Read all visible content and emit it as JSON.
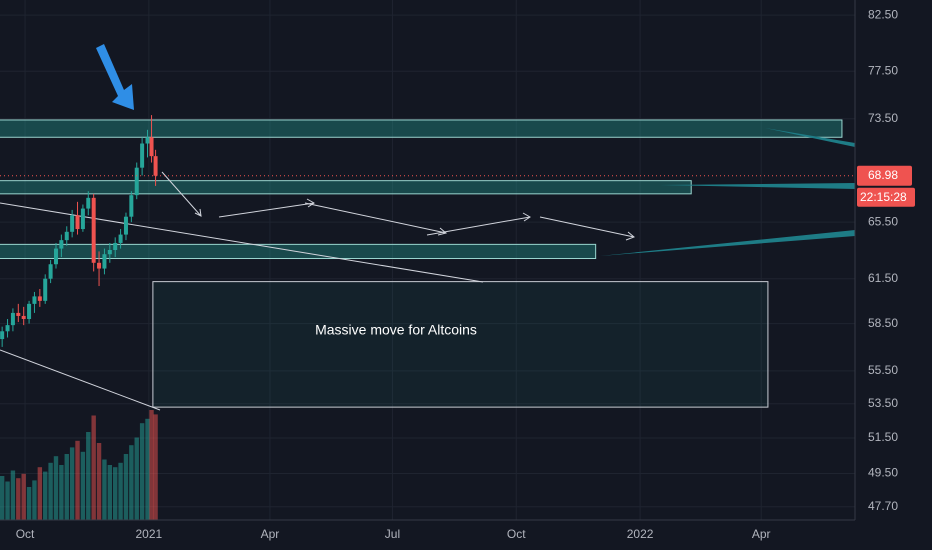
{
  "chart_data": {
    "type": "candlestick",
    "log_scale": true,
    "grid": true,
    "up_color": "#26a69a",
    "down_color": "#ef5350",
    "xlim": [
      -18.6,
      616.7
    ],
    "xticks": [
      {
        "value": 0,
        "label": "Oct"
      },
      {
        "value": 92,
        "label": "2021"
      },
      {
        "value": 182,
        "label": "Apr"
      },
      {
        "value": 273,
        "label": "Jul"
      },
      {
        "value": 365,
        "label": "Oct"
      },
      {
        "value": 457,
        "label": "2022"
      },
      {
        "value": 547,
        "label": "Apr"
      }
    ],
    "ylim": [
      47.0,
      83.9
    ],
    "yticks": [
      {
        "value": 82.5,
        "label": "82.50"
      },
      {
        "value": 77.5,
        "label": "77.50"
      },
      {
        "value": 73.5,
        "label": "73.50"
      },
      {
        "value": 65.5,
        "label": "65.50"
      },
      {
        "value": 61.5,
        "label": "61.50"
      },
      {
        "value": 58.5,
        "label": "58.50"
      },
      {
        "value": 55.5,
        "label": "55.50"
      },
      {
        "value": 53.5,
        "label": "53.50"
      },
      {
        "value": 51.5,
        "label": "51.50"
      },
      {
        "value": 49.5,
        "label": "49.50"
      },
      {
        "value": 47.7,
        "label": "47.70"
      }
    ],
    "candles": {
      "x": [
        -17,
        -13,
        -9,
        -5,
        -1,
        3,
        7,
        11,
        15,
        19,
        23,
        27,
        31,
        35,
        39,
        43,
        47,
        51,
        55,
        59,
        63,
        67,
        71,
        75,
        79,
        83,
        87,
        91,
        94,
        97
      ],
      "open": [
        57.5,
        58,
        58.4,
        59.2,
        59,
        58.8,
        59.8,
        60.3,
        60,
        61.5,
        62.5,
        63.6,
        64.2,
        64.8,
        66,
        65,
        66.5,
        67.3,
        62.6,
        62.2,
        63.2,
        63.5,
        64,
        64.6,
        65.9,
        67.5,
        69.6,
        71.5,
        72,
        70.5
      ],
      "high": [
        58.3,
        58.8,
        59.5,
        59.8,
        59.6,
        60,
        60.6,
        60.8,
        61.8,
        62.8,
        64,
        64.6,
        65.2,
        66.4,
        67,
        66.8,
        67.8,
        67.6,
        63.4,
        63.6,
        64,
        64.4,
        65,
        66.2,
        67.8,
        70,
        72,
        72.6,
        73.8,
        71
      ],
      "low": [
        57,
        57.6,
        58,
        58.6,
        58.4,
        58.5,
        59.2,
        59.6,
        59.8,
        61.2,
        62.2,
        63,
        63.8,
        64.4,
        64.6,
        64.8,
        66,
        62,
        61,
        61.8,
        62.6,
        63,
        63.6,
        64.2,
        65.5,
        67.2,
        69,
        70.4,
        70,
        68.2
      ],
      "close": [
        58,
        58.4,
        59.2,
        59,
        58.8,
        59.8,
        60.3,
        60,
        61.5,
        62.5,
        63.6,
        64.2,
        64.8,
        66,
        65,
        66.5,
        67.3,
        62.6,
        62.2,
        63.2,
        63.5,
        64,
        64.6,
        65.9,
        67.5,
        69.6,
        71.5,
        72,
        70.5,
        68.98
      ],
      "volume": [
        40,
        35,
        45,
        38,
        42,
        30,
        36,
        48,
        44,
        52,
        58,
        50,
        60,
        66,
        72,
        62,
        80,
        95,
        70,
        55,
        50,
        48,
        52,
        60,
        68,
        75,
        88,
        92,
        100,
        96
      ]
    },
    "zones": [
      {
        "x": [
          -19,
          607
        ],
        "y": [
          72.0,
          73.4
        ]
      },
      {
        "x": [
          -19,
          495
        ],
        "y": [
          67.6,
          68.6
        ]
      },
      {
        "x": [
          -19,
          424
        ],
        "y": [
          62.9,
          63.9
        ]
      }
    ],
    "annotation": {
      "x": [
        95,
        552
      ],
      "y": [
        53.3,
        61.3
      ],
      "label": "Massive move for Altcoins"
    },
    "last_price": {
      "value": 68.98,
      "label": "68.98"
    },
    "countdown": "22:15:28"
  }
}
